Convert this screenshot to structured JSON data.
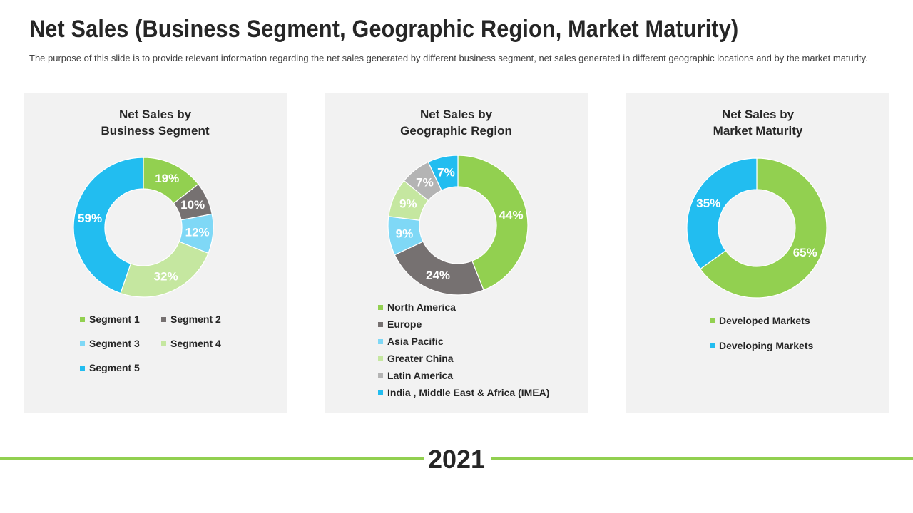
{
  "header": {
    "title": "Net Sales (Business Segment, Geographic Region, Market Maturity)",
    "subtitle": "The purpose of this slide is to provide relevant information regarding the net sales generated by different business segment, net sales generated in different geographic locations and by the market maturity."
  },
  "footer": {
    "year": "2021"
  },
  "colors": {
    "panel_bg": "#f2f2f2",
    "accent_line": "#92d050",
    "label_text": "#ffffff"
  },
  "chart_data": [
    {
      "type": "pie",
      "title_lines": [
        "Net Sales by",
        "Business Segment"
      ],
      "categories": [
        "Segment 1",
        "Segment 2",
        "Segment 3",
        "Segment 4",
        "Segment 5"
      ],
      "values": [
        19,
        10,
        12,
        32,
        59
      ],
      "labels": [
        "19%",
        "10%",
        "12%",
        "32%",
        "59%"
      ],
      "colors": [
        "#92d050",
        "#767171",
        "#7fd8f6",
        "#c5e7a0",
        "#22bdf0"
      ],
      "legend_position": "bottom"
    },
    {
      "type": "pie",
      "title_lines": [
        "Net Sales by",
        "Geographic Region"
      ],
      "categories": [
        "North America",
        "Europe",
        "Asia Pacific",
        "Greater China",
        "Latin America",
        "India , Middle East & Africa (IMEA)"
      ],
      "values": [
        44,
        24,
        9,
        9,
        7,
        7
      ],
      "labels": [
        "44%",
        "24%",
        "9%",
        "9%",
        "7%",
        "7%"
      ],
      "colors": [
        "#92d050",
        "#767171",
        "#7fd8f6",
        "#c5e7a0",
        "#b4b4b4",
        "#22bdf0"
      ],
      "legend_position": "bottom"
    },
    {
      "type": "pie",
      "title_lines": [
        "Net Sales by",
        "Market Maturity"
      ],
      "categories": [
        "Developed Markets",
        "Developing Markets"
      ],
      "values": [
        65,
        35
      ],
      "labels": [
        "65%",
        "35%"
      ],
      "colors": [
        "#92d050",
        "#22bdf0"
      ],
      "legend_position": "bottom"
    }
  ]
}
